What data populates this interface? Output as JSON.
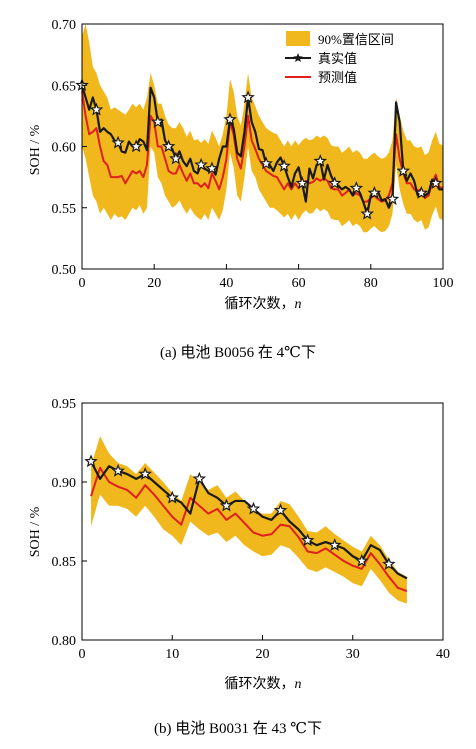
{
  "chart_data": [
    {
      "type": "line",
      "caption": "(a) 电池 B0056 在 4℃下",
      "xlabel": "循环次数，",
      "xlabel_var": "n",
      "ylabel": "SOH / %",
      "xlim": [
        0,
        100
      ],
      "ylim": [
        0.5,
        0.7
      ],
      "xticks": [
        "0",
        "20",
        "40",
        "60",
        "80",
        "100"
      ],
      "yticks": [
        "0.50",
        "0.55",
        "0.60",
        "0.65",
        "0.70"
      ],
      "legend_position": "top-right",
      "legend": [
        "90%置信区间",
        "真实值",
        "预测值"
      ],
      "colors": {
        "band": "#f0b81d",
        "actual": "#1a1a1a",
        "predicted": "#e01f1f"
      },
      "x": [
        0,
        1,
        2,
        3,
        4,
        5,
        6,
        7,
        8,
        9,
        10,
        11,
        12,
        13,
        14,
        15,
        16,
        17,
        18,
        19,
        20,
        21,
        22,
        23,
        24,
        25,
        26,
        27,
        28,
        29,
        30,
        31,
        32,
        33,
        34,
        35,
        36,
        37,
        38,
        39,
        40,
        41,
        42,
        43,
        44,
        45,
        46,
        47,
        48,
        49,
        50,
        51,
        52,
        53,
        54,
        55,
        56,
        57,
        58,
        59,
        60,
        61,
        62,
        63,
        64,
        65,
        66,
        67,
        68,
        69,
        70,
        71,
        72,
        73,
        74,
        75,
        76,
        77,
        78,
        79,
        80,
        81,
        82,
        83,
        84,
        85,
        86,
        87,
        88,
        89,
        90,
        91,
        92,
        93,
        94,
        95,
        96,
        97,
        98,
        99,
        100
      ],
      "series": [
        {
          "name": "真实值",
          "values": [
            0.65,
            0.64,
            0.63,
            0.64,
            0.63,
            0.612,
            0.615,
            0.612,
            0.61,
            0.605,
            0.603,
            0.596,
            0.595,
            0.604,
            0.6,
            0.6,
            0.606,
            0.604,
            0.597,
            0.648,
            0.64,
            0.62,
            0.622,
            0.605,
            0.6,
            0.598,
            0.59,
            0.596,
            0.588,
            0.584,
            0.59,
            0.58,
            0.578,
            0.585,
            0.582,
            0.58,
            0.582,
            0.577,
            0.59,
            0.6,
            0.6,
            0.622,
            0.615,
            0.595,
            0.592,
            0.612,
            0.64,
            0.62,
            0.612,
            0.598,
            0.597,
            0.586,
            0.585,
            0.58,
            0.587,
            0.591,
            0.584,
            0.575,
            0.567,
            0.578,
            0.583,
            0.57,
            0.555,
            0.582,
            0.574,
            0.585,
            0.588,
            0.573,
            0.585,
            0.576,
            0.57,
            0.568,
            0.565,
            0.567,
            0.565,
            0.56,
            0.566,
            0.562,
            0.554,
            0.545,
            0.56,
            0.562,
            0.563,
            0.556,
            0.557,
            0.55,
            0.557,
            0.636,
            0.62,
            0.58,
            0.572,
            0.578,
            0.572,
            0.56,
            0.562,
            0.56,
            0.562,
            0.573,
            0.57,
            0.565,
            0.565
          ]
        },
        {
          "name": "预测值",
          "values": [
            0.645,
            0.625,
            0.61,
            0.612,
            0.615,
            0.6,
            0.588,
            0.585,
            0.575,
            0.575,
            0.575,
            0.576,
            0.57,
            0.575,
            0.58,
            0.578,
            0.58,
            0.575,
            0.585,
            0.625,
            0.62,
            0.6,
            0.6,
            0.59,
            0.58,
            0.578,
            0.578,
            0.585,
            0.578,
            0.572,
            0.578,
            0.57,
            0.57,
            0.567,
            0.57,
            0.566,
            0.578,
            0.572,
            0.565,
            0.575,
            0.59,
            0.62,
            0.61,
            0.59,
            0.582,
            0.6,
            0.625,
            0.605,
            0.598,
            0.59,
            0.585,
            0.58,
            0.578,
            0.576,
            0.575,
            0.57,
            0.565,
            0.57,
            0.565,
            0.57,
            0.566,
            0.57,
            0.572,
            0.57,
            0.571,
            0.574,
            0.572,
            0.574,
            0.572,
            0.566,
            0.565,
            0.565,
            0.56,
            0.562,
            0.565,
            0.56,
            0.562,
            0.56,
            0.555,
            0.555,
            0.558,
            0.56,
            0.557,
            0.555,
            0.556,
            0.56,
            0.57,
            0.61,
            0.59,
            0.578,
            0.57,
            0.57,
            0.565,
            0.564,
            0.565,
            0.558,
            0.56,
            0.57,
            0.577,
            0.567,
            0.566
          ]
        },
        {
          "name": "90%置信区间",
          "lower": [
            0.6,
            0.59,
            0.575,
            0.56,
            0.555,
            0.545,
            0.55,
            0.545,
            0.54,
            0.545,
            0.542,
            0.543,
            0.54,
            0.545,
            0.55,
            0.548,
            0.552,
            0.545,
            0.55,
            0.6,
            0.595,
            0.575,
            0.57,
            0.56,
            0.555,
            0.55,
            0.552,
            0.556,
            0.55,
            0.545,
            0.55,
            0.545,
            0.542,
            0.54,
            0.545,
            0.54,
            0.55,
            0.545,
            0.54,
            0.548,
            0.565,
            0.595,
            0.583,
            0.56,
            0.555,
            0.575,
            0.6,
            0.58,
            0.575,
            0.565,
            0.56,
            0.555,
            0.55,
            0.55,
            0.548,
            0.545,
            0.542,
            0.545,
            0.54,
            0.545,
            0.54,
            0.545,
            0.548,
            0.545,
            0.546,
            0.55,
            0.547,
            0.549,
            0.547,
            0.541,
            0.54,
            0.54,
            0.535,
            0.537,
            0.54,
            0.535,
            0.537,
            0.535,
            0.53,
            0.53,
            0.533,
            0.535,
            0.532,
            0.53,
            0.531,
            0.535,
            0.545,
            0.585,
            0.565,
            0.553,
            0.545,
            0.545,
            0.54,
            0.538,
            0.54,
            0.532,
            0.534,
            0.544,
            0.551,
            0.541,
            0.54
          ],
          "upper": [
            0.69,
            0.7,
            0.685,
            0.665,
            0.66,
            0.65,
            0.645,
            0.64,
            0.63,
            0.632,
            0.63,
            0.628,
            0.626,
            0.63,
            0.635,
            0.632,
            0.635,
            0.63,
            0.64,
            0.66,
            0.65,
            0.635,
            0.635,
            0.625,
            0.618,
            0.615,
            0.615,
            0.62,
            0.615,
            0.608,
            0.613,
            0.605,
            0.606,
            0.603,
            0.606,
            0.602,
            0.613,
            0.607,
            0.6,
            0.61,
            0.625,
            0.655,
            0.645,
            0.625,
            0.617,
            0.635,
            0.66,
            0.64,
            0.633,
            0.625,
            0.62,
            0.615,
            0.613,
            0.611,
            0.61,
            0.605,
            0.6,
            0.605,
            0.6,
            0.605,
            0.601,
            0.605,
            0.607,
            0.605,
            0.606,
            0.609,
            0.607,
            0.609,
            0.607,
            0.601,
            0.6,
            0.6,
            0.595,
            0.597,
            0.6,
            0.595,
            0.597,
            0.595,
            0.59,
            0.59,
            0.593,
            0.595,
            0.592,
            0.59,
            0.591,
            0.595,
            0.605,
            0.64,
            0.625,
            0.613,
            0.605,
            0.605,
            0.6,
            0.599,
            0.6,
            0.593,
            0.595,
            0.605,
            0.612,
            0.602,
            0.601
          ]
        }
      ],
      "markers_at": [
        0,
        4,
        10,
        15,
        21,
        24,
        26,
        33,
        36,
        41,
        46,
        51,
        56,
        61,
        66,
        70,
        76,
        79,
        81,
        86,
        89,
        94,
        98
      ]
    },
    {
      "type": "line",
      "caption": "(b) 电池 B0031 在 43 ℃下",
      "xlabel": "循环次数，",
      "xlabel_var": "n",
      "ylabel": "SOH / %",
      "xlim": [
        0,
        40
      ],
      "ylim": [
        0.8,
        0.95
      ],
      "xticks": [
        "0",
        "10",
        "20",
        "30",
        "40"
      ],
      "yticks": [
        "0.80",
        "0.85",
        "0.90",
        "0.95"
      ],
      "colors": {
        "band": "#f0b81d",
        "actual": "#1a1a1a",
        "predicted": "#e01f1f"
      },
      "x": [
        1,
        2,
        3,
        4,
        5,
        6,
        7,
        8,
        9,
        10,
        11,
        12,
        13,
        14,
        15,
        16,
        17,
        18,
        19,
        20,
        21,
        22,
        23,
        24,
        25,
        26,
        27,
        28,
        29,
        30,
        31,
        32,
        33,
        34,
        35,
        36
      ],
      "series": [
        {
          "name": "真实值",
          "values": [
            0.913,
            0.902,
            0.91,
            0.907,
            0.905,
            0.902,
            0.905,
            0.9,
            0.895,
            0.89,
            0.887,
            0.88,
            0.902,
            0.893,
            0.89,
            0.885,
            0.888,
            0.888,
            0.883,
            0.878,
            0.876,
            0.882,
            0.875,
            0.87,
            0.863,
            0.86,
            0.862,
            0.86,
            0.858,
            0.853,
            0.85,
            0.86,
            0.857,
            0.848,
            0.842,
            0.839
          ]
        },
        {
          "name": "预测值",
          "values": [
            0.891,
            0.909,
            0.9,
            0.897,
            0.895,
            0.89,
            0.898,
            0.892,
            0.885,
            0.878,
            0.873,
            0.89,
            0.885,
            0.88,
            0.883,
            0.876,
            0.88,
            0.874,
            0.868,
            0.866,
            0.867,
            0.873,
            0.872,
            0.865,
            0.856,
            0.855,
            0.858,
            0.854,
            0.85,
            0.847,
            0.845,
            0.855,
            0.848,
            0.84,
            0.833,
            0.831
          ]
        },
        {
          "name": "90%置信区间",
          "lower": [
            0.872,
            0.892,
            0.885,
            0.885,
            0.883,
            0.878,
            0.885,
            0.878,
            0.87,
            0.866,
            0.86,
            0.875,
            0.87,
            0.866,
            0.868,
            0.862,
            0.866,
            0.86,
            0.856,
            0.853,
            0.854,
            0.86,
            0.858,
            0.852,
            0.845,
            0.843,
            0.846,
            0.843,
            0.84,
            0.836,
            0.834,
            0.845,
            0.838,
            0.83,
            0.825,
            0.823
          ],
          "upper": [
            0.91,
            0.929,
            0.918,
            0.912,
            0.91,
            0.905,
            0.912,
            0.906,
            0.9,
            0.893,
            0.888,
            0.905,
            0.9,
            0.895,
            0.898,
            0.89,
            0.894,
            0.888,
            0.882,
            0.88,
            0.88,
            0.888,
            0.886,
            0.878,
            0.869,
            0.868,
            0.872,
            0.867,
            0.863,
            0.859,
            0.856,
            0.866,
            0.86,
            0.851,
            0.843,
            0.84
          ]
        }
      ],
      "markers_at": [
        0,
        3,
        6,
        9,
        12,
        15,
        18,
        21,
        24,
        27,
        30,
        33
      ]
    }
  ]
}
